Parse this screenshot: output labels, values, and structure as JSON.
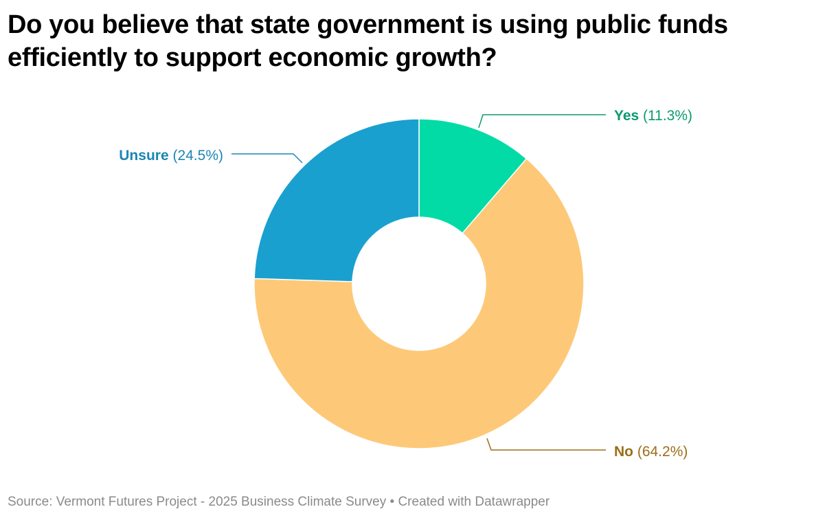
{
  "title": "Do you believe that state government is using public funds efficiently to support economic growth?",
  "source": "Source: Vermont Futures Project - 2025 Business Climate Survey • Created with Datawrapper",
  "chart_data": {
    "type": "pie",
    "variant": "donut",
    "slices": [
      {
        "label": "Yes",
        "value": 11.3,
        "display": "(11.3%)",
        "color": "#03DBA6",
        "label_color": "#0B9A6E"
      },
      {
        "label": "No",
        "value": 64.2,
        "display": "(64.2%)",
        "color": "#FDC978",
        "label_color": "#9B6E18"
      },
      {
        "label": "Unsure",
        "value": 24.5,
        "display": "(24.5%)",
        "color": "#19A0CF",
        "label_color": "#1B86B3"
      }
    ],
    "start_angle_deg": 0,
    "direction": "clockwise"
  }
}
